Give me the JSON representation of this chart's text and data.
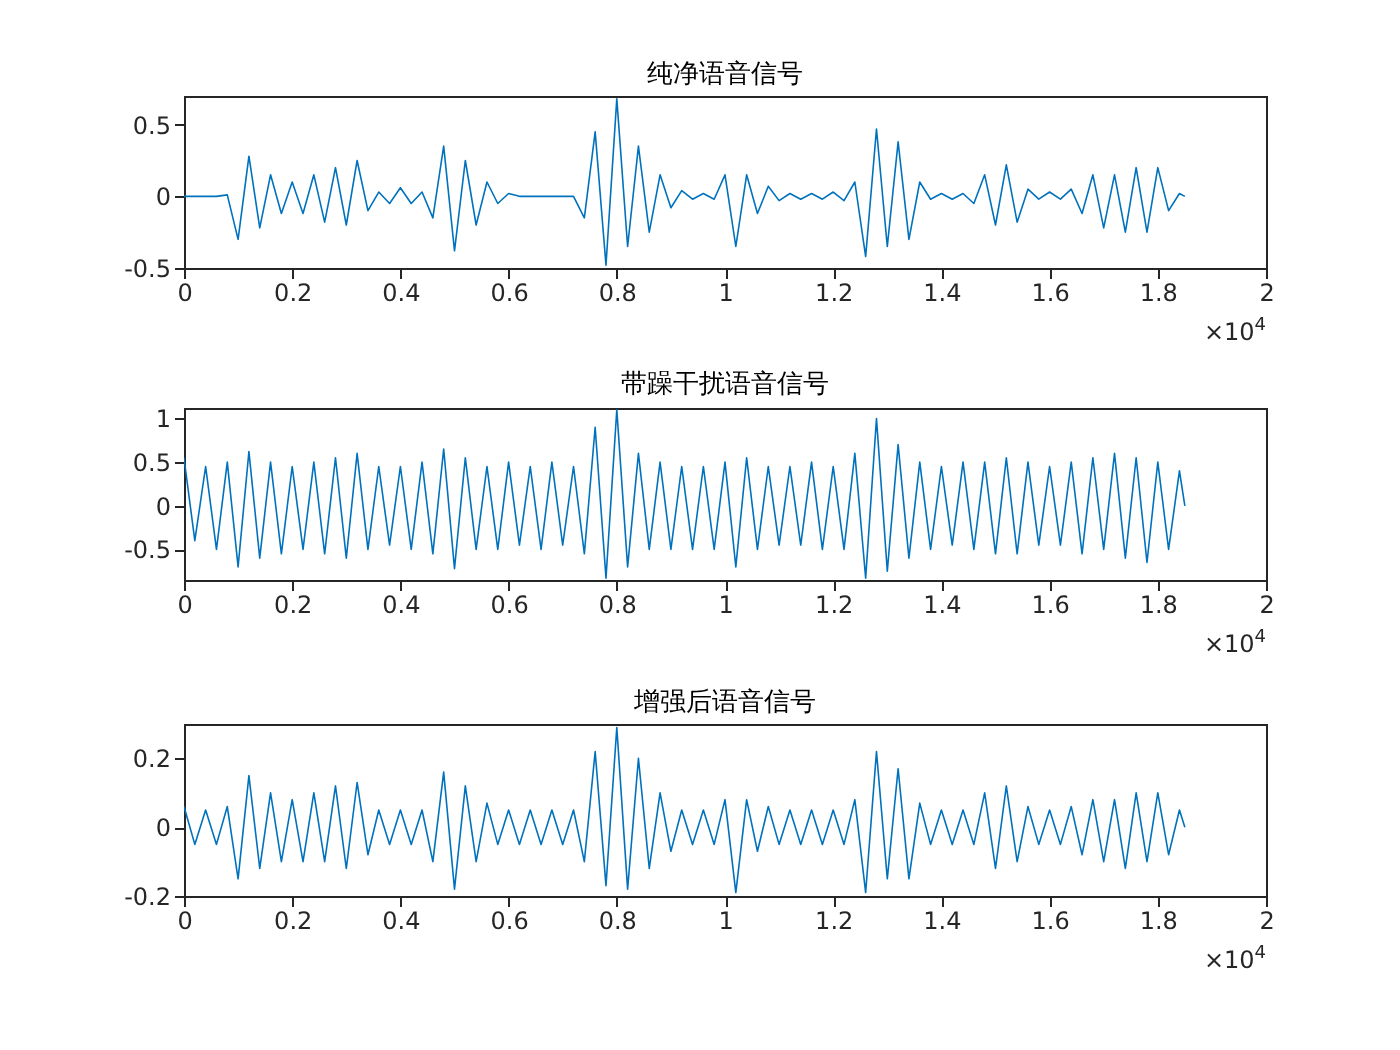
{
  "chart_data": [
    {
      "type": "line",
      "title": "纯净语音信号",
      "annotations": [
        "×10$^{4}$"
      ],
      "xlim": [
        0,
        2
      ],
      "xticks": [
        0,
        0.2,
        0.4,
        0.6,
        0.8,
        1,
        1.2,
        1.4,
        1.6,
        1.8,
        2
      ],
      "ylim": [
        -0.5,
        0.7
      ],
      "yticks": [
        -0.5,
        0,
        0.5
      ],
      "grid": false,
      "x": [
        0,
        0.02,
        0.04,
        0.06,
        0.08,
        0.1,
        0.12,
        0.14,
        0.16,
        0.18,
        0.2,
        0.22,
        0.24,
        0.26,
        0.28,
        0.3,
        0.32,
        0.34,
        0.36,
        0.38,
        0.4,
        0.42,
        0.44,
        0.46,
        0.48,
        0.5,
        0.52,
        0.54,
        0.56,
        0.58,
        0.6,
        0.62,
        0.64,
        0.66,
        0.68,
        0.7,
        0.72,
        0.74,
        0.76,
        0.78,
        0.8,
        0.82,
        0.84,
        0.86,
        0.88,
        0.9,
        0.92,
        0.94,
        0.96,
        0.98,
        1,
        1.02,
        1.04,
        1.06,
        1.08,
        1.1,
        1.12,
        1.14,
        1.16,
        1.18,
        1.2,
        1.22,
        1.24,
        1.26,
        1.28,
        1.3,
        1.32,
        1.34,
        1.36,
        1.38,
        1.4,
        1.42,
        1.44,
        1.46,
        1.48,
        1.5,
        1.52,
        1.54,
        1.56,
        1.58,
        1.6,
        1.62,
        1.64,
        1.66,
        1.68,
        1.7,
        1.72,
        1.74,
        1.76,
        1.78,
        1.8,
        1.82,
        1.84,
        1.85
      ],
      "series": [
        {
          "color": "#0072bd",
          "values": [
            0,
            0,
            0,
            0,
            0.01,
            -0.3,
            0.28,
            -0.22,
            0.15,
            -0.12,
            0.1,
            -0.12,
            0.15,
            -0.18,
            0.2,
            -0.2,
            0.25,
            -0.1,
            0.03,
            -0.05,
            0.06,
            -0.05,
            0.03,
            -0.15,
            0.35,
            -0.38,
            0.25,
            -0.2,
            0.1,
            -0.05,
            0.02,
            0,
            0,
            0,
            0,
            0,
            0,
            -0.15,
            0.45,
            -0.48,
            0.68,
            -0.35,
            0.35,
            -0.25,
            0.15,
            -0.08,
            0.04,
            -0.02,
            0.02,
            -0.02,
            0.15,
            -0.35,
            0.15,
            -0.12,
            0.07,
            -0.03,
            0.02,
            -0.02,
            0.02,
            -0.02,
            0.03,
            -0.03,
            0.1,
            -0.42,
            0.47,
            -0.35,
            0.38,
            -0.3,
            0.1,
            -0.02,
            0.02,
            -0.02,
            0.02,
            -0.05,
            0.15,
            -0.2,
            0.22,
            -0.18,
            0.05,
            -0.02,
            0.03,
            -0.02,
            0.05,
            -0.12,
            0.15,
            -0.22,
            0.15,
            -0.25,
            0.2,
            -0.25,
            0.2,
            -0.1,
            0.02,
            0
          ]
        }
      ]
    },
    {
      "type": "line",
      "title": "带躁干扰语音信号",
      "annotations": [
        "×10$^{4}$"
      ],
      "xlim": [
        0,
        2
      ],
      "xticks": [
        0,
        0.2,
        0.4,
        0.6,
        0.8,
        1,
        1.2,
        1.4,
        1.6,
        1.8,
        2
      ],
      "ylim": [
        -0.85,
        1.12
      ],
      "yticks": [
        -0.5,
        0,
        0.5,
        1
      ],
      "grid": false,
      "x": [
        0,
        0.02,
        0.04,
        0.06,
        0.08,
        0.1,
        0.12,
        0.14,
        0.16,
        0.18,
        0.2,
        0.22,
        0.24,
        0.26,
        0.28,
        0.3,
        0.32,
        0.34,
        0.36,
        0.38,
        0.4,
        0.42,
        0.44,
        0.46,
        0.48,
        0.5,
        0.52,
        0.54,
        0.56,
        0.58,
        0.6,
        0.62,
        0.64,
        0.66,
        0.68,
        0.7,
        0.72,
        0.74,
        0.76,
        0.78,
        0.8,
        0.82,
        0.84,
        0.86,
        0.88,
        0.9,
        0.92,
        0.94,
        0.96,
        0.98,
        1,
        1.02,
        1.04,
        1.06,
        1.08,
        1.1,
        1.12,
        1.14,
        1.16,
        1.18,
        1.2,
        1.22,
        1.24,
        1.26,
        1.28,
        1.3,
        1.32,
        1.34,
        1.36,
        1.38,
        1.4,
        1.42,
        1.44,
        1.46,
        1.48,
        1.5,
        1.52,
        1.54,
        1.56,
        1.58,
        1.6,
        1.62,
        1.64,
        1.66,
        1.68,
        1.7,
        1.72,
        1.74,
        1.76,
        1.78,
        1.8,
        1.82,
        1.84,
        1.85
      ],
      "series": [
        {
          "color": "#0072bd",
          "values": [
            0.55,
            -0.4,
            0.45,
            -0.5,
            0.5,
            -0.7,
            0.62,
            -0.6,
            0.5,
            -0.55,
            0.45,
            -0.5,
            0.5,
            -0.55,
            0.55,
            -0.6,
            0.6,
            -0.5,
            0.45,
            -0.45,
            0.45,
            -0.5,
            0.5,
            -0.55,
            0.65,
            -0.72,
            0.55,
            -0.5,
            0.45,
            -0.5,
            0.5,
            -0.45,
            0.45,
            -0.5,
            0.5,
            -0.45,
            0.45,
            -0.55,
            0.9,
            -0.83,
            1.1,
            -0.7,
            0.6,
            -0.5,
            0.5,
            -0.5,
            0.45,
            -0.5,
            0.45,
            -0.5,
            0.5,
            -0.7,
            0.55,
            -0.5,
            0.45,
            -0.45,
            0.45,
            -0.45,
            0.5,
            -0.5,
            0.45,
            -0.5,
            0.6,
            -0.83,
            1.0,
            -0.75,
            0.7,
            -0.6,
            0.5,
            -0.5,
            0.45,
            -0.45,
            0.5,
            -0.5,
            0.5,
            -0.55,
            0.55,
            -0.55,
            0.5,
            -0.45,
            0.45,
            -0.45,
            0.5,
            -0.55,
            0.55,
            -0.5,
            0.6,
            -0.6,
            0.55,
            -0.65,
            0.5,
            -0.5,
            0.4,
            0
          ]
        }
      ]
    },
    {
      "type": "line",
      "title": "增强后语音信号",
      "annotations": [
        "×10$^{4}$"
      ],
      "xlim": [
        0,
        2
      ],
      "xticks": [
        0,
        0.2,
        0.4,
        0.6,
        0.8,
        1,
        1.2,
        1.4,
        1.6,
        1.8,
        2
      ],
      "ylim": [
        -0.2,
        0.3
      ],
      "yticks": [
        -0.2,
        0,
        0.2
      ],
      "grid": false,
      "x": [
        0,
        0.02,
        0.04,
        0.06,
        0.08,
        0.1,
        0.12,
        0.14,
        0.16,
        0.18,
        0.2,
        0.22,
        0.24,
        0.26,
        0.28,
        0.3,
        0.32,
        0.34,
        0.36,
        0.38,
        0.4,
        0.42,
        0.44,
        0.46,
        0.48,
        0.5,
        0.52,
        0.54,
        0.56,
        0.58,
        0.6,
        0.62,
        0.64,
        0.66,
        0.68,
        0.7,
        0.72,
        0.74,
        0.76,
        0.78,
        0.8,
        0.82,
        0.84,
        0.86,
        0.88,
        0.9,
        0.92,
        0.94,
        0.96,
        0.98,
        1,
        1.02,
        1.04,
        1.06,
        1.08,
        1.1,
        1.12,
        1.14,
        1.16,
        1.18,
        1.2,
        1.22,
        1.24,
        1.26,
        1.28,
        1.3,
        1.32,
        1.34,
        1.36,
        1.38,
        1.4,
        1.42,
        1.44,
        1.46,
        1.48,
        1.5,
        1.52,
        1.54,
        1.56,
        1.58,
        1.6,
        1.62,
        1.64,
        1.66,
        1.68,
        1.7,
        1.72,
        1.74,
        1.76,
        1.78,
        1.8,
        1.82,
        1.84,
        1.85
      ],
      "series": [
        {
          "color": "#0072bd",
          "values": [
            0.06,
            -0.05,
            0.05,
            -0.05,
            0.06,
            -0.15,
            0.15,
            -0.12,
            0.1,
            -0.1,
            0.08,
            -0.1,
            0.1,
            -0.1,
            0.12,
            -0.12,
            0.13,
            -0.08,
            0.05,
            -0.05,
            0.05,
            -0.05,
            0.05,
            -0.1,
            0.16,
            -0.18,
            0.12,
            -0.1,
            0.07,
            -0.05,
            0.05,
            -0.05,
            0.05,
            -0.05,
            0.05,
            -0.05,
            0.05,
            -0.1,
            0.22,
            -0.17,
            0.29,
            -0.18,
            0.2,
            -0.12,
            0.1,
            -0.07,
            0.05,
            -0.05,
            0.05,
            -0.05,
            0.08,
            -0.19,
            0.08,
            -0.07,
            0.06,
            -0.05,
            0.05,
            -0.05,
            0.05,
            -0.05,
            0.05,
            -0.05,
            0.08,
            -0.19,
            0.22,
            -0.15,
            0.17,
            -0.15,
            0.07,
            -0.05,
            0.05,
            -0.05,
            0.05,
            -0.05,
            0.1,
            -0.12,
            0.12,
            -0.1,
            0.06,
            -0.05,
            0.05,
            -0.05,
            0.06,
            -0.08,
            0.08,
            -0.1,
            0.08,
            -0.12,
            0.1,
            -0.1,
            0.1,
            -0.08,
            0.05,
            0
          ]
        }
      ]
    }
  ]
}
